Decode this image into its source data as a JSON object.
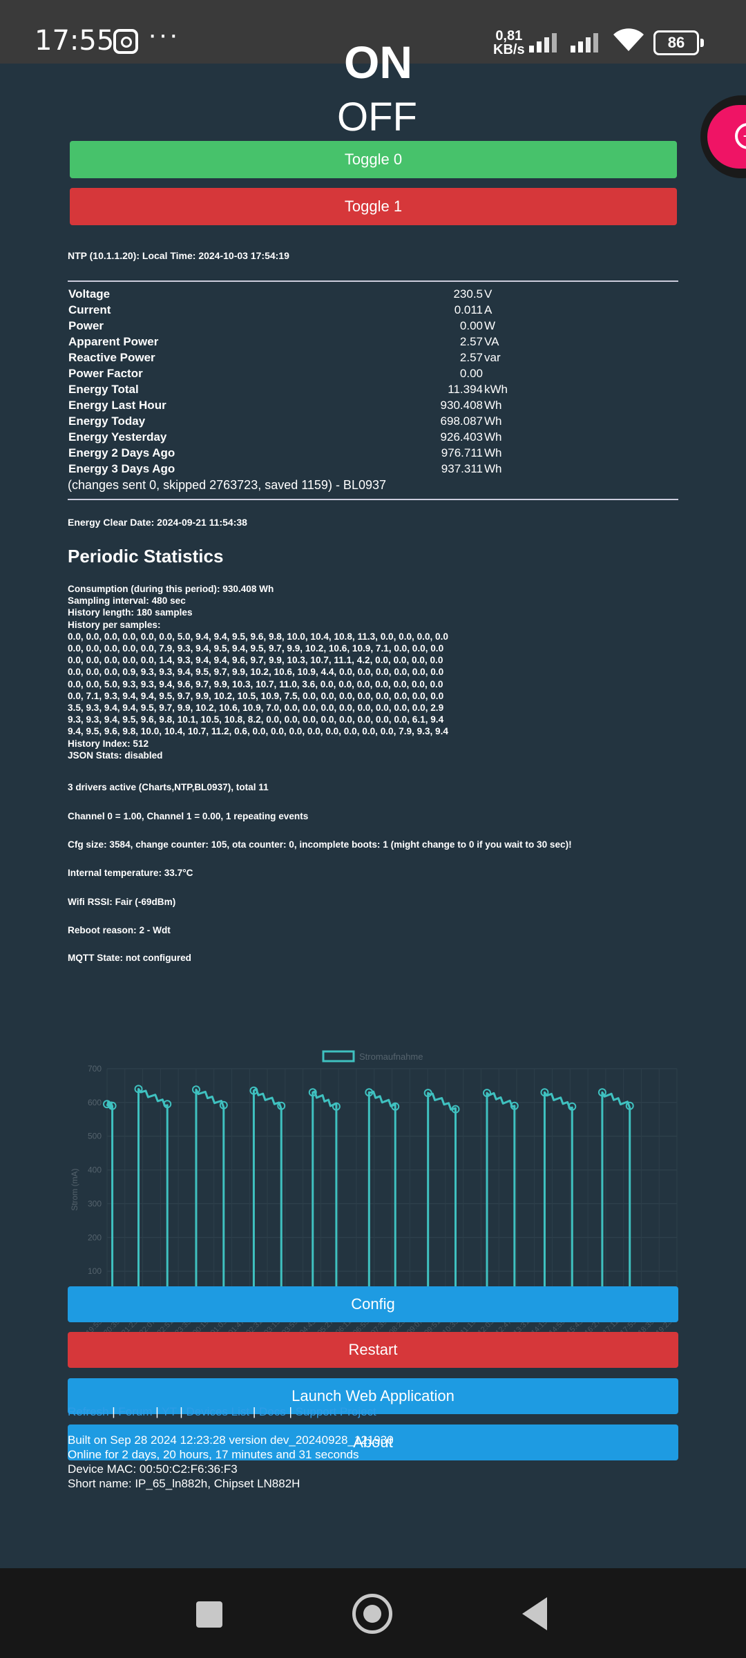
{
  "status_bar": {
    "time": "17:55",
    "net_speed_value": "0,81",
    "net_speed_unit": "KB/s",
    "battery": "86",
    "icons": [
      "instagram-icon",
      "more-dots-icon",
      "signal-icon",
      "signal-icon",
      "wifi-icon",
      "battery-icon"
    ]
  },
  "relay": {
    "cutoff_state": "ON",
    "state": "OFF"
  },
  "toggles": {
    "toggle0": "Toggle 0",
    "toggle1": "Toggle 1"
  },
  "ntp": "NTP (10.1.1.20): Local Time: 2024-10-03 17:54:19",
  "energy": {
    "rows": [
      {
        "label": "Voltage",
        "value": "230.5",
        "unit": "V"
      },
      {
        "label": "Current",
        "value": "0.011",
        "unit": "A"
      },
      {
        "label": "Power",
        "value": "0.00",
        "unit": "W"
      },
      {
        "label": "Apparent Power",
        "value": "2.57",
        "unit": "VA"
      },
      {
        "label": "Reactive Power",
        "value": "2.57",
        "unit": "var"
      },
      {
        "label": "Power Factor",
        "value": "0.00",
        "unit": ""
      },
      {
        "label": "Energy Total",
        "value": "11.394",
        "unit": "kWh"
      },
      {
        "label": "Energy Last Hour",
        "value": "930.408",
        "unit": "Wh"
      },
      {
        "label": "Energy Today",
        "value": "698.087",
        "unit": "Wh"
      },
      {
        "label": "Energy Yesterday",
        "value": "926.403",
        "unit": "Wh"
      },
      {
        "label": "Energy 2 Days Ago",
        "value": "976.711",
        "unit": "Wh"
      },
      {
        "label": "Energy 3 Days Ago",
        "value": "937.311",
        "unit": "Wh"
      }
    ],
    "changes": "(changes sent 0, skipped 2763723, saved 1159) - BL0937"
  },
  "clear_date": "Energy Clear Date: 2024-09-21 11:54:38",
  "periodic": {
    "title": "Periodic Statistics",
    "lines": [
      "Consumption (during this period): 930.408 Wh",
      "Sampling interval: 480 sec",
      "History length: 180 samples",
      "History per samples:",
      "0.0, 0.0, 0.0, 0.0, 0.0, 0.0, 5.0, 9.4, 9.4, 9.5, 9.6, 9.8, 10.0, 10.4, 10.8, 11.3, 0.0, 0.0, 0.0, 0.0",
      "0.0, 0.0, 0.0, 0.0, 0.0, 7.9, 9.3, 9.4, 9.5, 9.4, 9.5, 9.7, 9.9, 10.2, 10.6, 10.9, 7.1, 0.0, 0.0, 0.0",
      "0.0, 0.0, 0.0, 0.0, 0.0, 1.4, 9.3, 9.4, 9.4, 9.6, 9.7, 9.9, 10.3, 10.7, 11.1, 4.2, 0.0, 0.0, 0.0, 0.0",
      "0.0, 0.0, 0.0, 0.9, 9.3, 9.3, 9.4, 9.5, 9.7, 9.9, 10.2, 10.6, 10.9, 4.4, 0.0, 0.0, 0.0, 0.0, 0.0, 0.0",
      "0.0, 0.0, 5.0, 9.3, 9.3, 9.4, 9.6, 9.7, 9.9, 10.3, 10.7, 11.0, 3.6, 0.0, 0.0, 0.0, 0.0, 0.0, 0.0, 0.0",
      "0.0, 7.1, 9.3, 9.4, 9.4, 9.5, 9.7, 9.9, 10.2, 10.5, 10.9, 7.5, 0.0, 0.0, 0.0, 0.0, 0.0, 0.0, 0.0, 0.0",
      "3.5, 9.3, 9.4, 9.4, 9.5, 9.7, 9.9, 10.2, 10.6, 10.9, 7.0, 0.0, 0.0, 0.0, 0.0, 0.0, 0.0, 0.0, 0.0, 2.9",
      "9.3, 9.3, 9.4, 9.5, 9.6, 9.8, 10.1, 10.5, 10.8, 8.2, 0.0, 0.0, 0.0, 0.0, 0.0, 0.0, 0.0, 0.0, 6.1, 9.4",
      "9.4, 9.5, 9.6, 9.8, 10.0, 10.4, 10.7, 11.2, 0.6, 0.0, 0.0, 0.0, 0.0, 0.0, 0.0, 0.0, 0.0, 7.9, 9.3, 9.4",
      "History Index: 512",
      "JSON Stats: disabled"
    ]
  },
  "info": {
    "drivers": "3 drivers active (Charts,NTP,BL0937), total 11",
    "channels": "Channel 0 = 1.00, Channel 1 = 0.00, 1 repeating events",
    "cfg": "Cfg size: 3584, change counter: 105, ota counter: 0, incomplete boots: 1 (might change to 0 if you wait to 30 sec)!",
    "temp": "Internal temperature: 33.7°C",
    "wifi": "Wifi RSSI: Fair (-69dBm)",
    "reboot": "Reboot reason: 2 - Wdt",
    "mqtt": "MQTT State: not configured"
  },
  "chart_data": {
    "type": "line",
    "series": [
      {
        "name": "Stromaufnahme",
        "color": "#3fc1c0"
      }
    ],
    "ylabel": "Strom (mA)",
    "ylim": [
      0,
      700
    ],
    "yticks": [
      "0",
      "100",
      "200",
      "300",
      "400",
      "500",
      "600",
      "700"
    ],
    "x": [
      "19:55:18",
      "20:39:18",
      "21:23:12",
      "22:07:12",
      "22:51:13",
      "23:35:13",
      "00:19:16",
      "01:03:16",
      "01:47:16",
      "02:31:15",
      "03:15:15",
      "03:59:15",
      "04:43:15",
      "05:27:14",
      "06:11:13",
      "06:55:13",
      "07:39:12",
      "08:23:11",
      "09:07:11",
      "09:51:12",
      "10:35:11",
      "11:19:10",
      "12:03:10",
      "12:47:10",
      "13:31:10",
      "14:15:10",
      "14:59:09",
      "15:43:09",
      "16:27:08",
      "17:11:08",
      "17:55:07",
      "18:39:07",
      "19:23:07"
    ],
    "cycles": [
      {
        "on": 0.0,
        "off": 0.4,
        "start": 595,
        "end": 590
      },
      {
        "on": 2.4,
        "off": 4.6,
        "start": 640,
        "end": 595
      },
      {
        "on": 6.8,
        "off": 8.9,
        "start": 638,
        "end": 592
      },
      {
        "on": 11.2,
        "off": 13.3,
        "start": 635,
        "end": 590
      },
      {
        "on": 15.7,
        "off": 17.5,
        "start": 630,
        "end": 588
      },
      {
        "on": 20.0,
        "off": 22.0,
        "start": 630,
        "end": 588
      },
      {
        "on": 24.5,
        "off": 26.6,
        "start": 628,
        "end": 580
      },
      {
        "on": 29.0,
        "off": 31.1,
        "start": 628,
        "end": 590
      },
      {
        "on": 33.4,
        "off": 35.5,
        "start": 630,
        "end": 588
      },
      {
        "on": 37.8,
        "off": 39.9,
        "start": 630,
        "end": 590
      }
    ],
    "off_level": 5,
    "x_span": 43.5
  },
  "buttons": {
    "config": "Config",
    "restart": "Restart",
    "launch": "Launch Web Application",
    "about": "About"
  },
  "links": {
    "refresh": "Refresh",
    "forum": "Forum",
    "yt": "YT",
    "devices": "Devices List",
    "docs": "Docs",
    "support": "Support Project",
    "sep": "|"
  },
  "footer": {
    "built": "Built on Sep 28 2024 12:23:28 version dev_20240928_121930",
    "online": "Online for 2 days, 20 hours, 17 minutes and 31 seconds",
    "mac": "Device MAC: 00:50:C2:F6:36:F3",
    "short": "Short name: IP_65_ln882h, Chipset LN882H"
  },
  "colors": {
    "background": "#233440",
    "toggle_on": "#47c26b",
    "toggle_off": "#d6373a",
    "button_blue": "#1e9be2",
    "link": "#2f9de6",
    "fab": "#ef1465"
  }
}
